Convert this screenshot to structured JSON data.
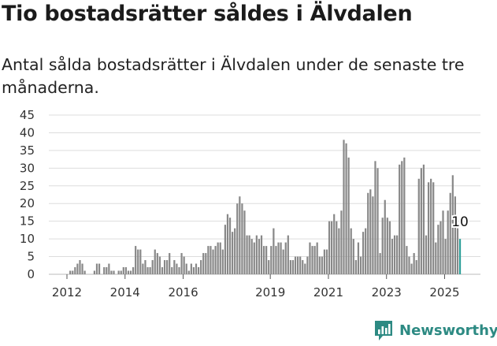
{
  "title": "Tio bostadsrätter såldes i Älvdalen",
  "subtitle": "Antal sålda bostadsrätter i Älvdalen under de senaste tre månaderna.",
  "brand": {
    "name": "Newsworthy",
    "icon": "chart-bars-icon",
    "color": "#2d8a83"
  },
  "colors": {
    "bar": "#888888",
    "highlight": "#2d9f99",
    "grid": "#dddddd"
  },
  "chart_data": {
    "type": "bar",
    "title": "Tio bostadsrätter såldes i Älvdalen",
    "xlabel": "",
    "ylabel": "",
    "ylim": [
      0,
      45
    ],
    "yticks": [
      0,
      5,
      10,
      15,
      20,
      25,
      30,
      35,
      40,
      45
    ],
    "xticks": [
      {
        "label": "2012",
        "year": 2012.0
      },
      {
        "label": "2014",
        "year": 2014.0
      },
      {
        "label": "2016",
        "year": 2016.0
      },
      {
        "label": "2019",
        "year": 2019.0
      },
      {
        "label": "2021",
        "year": 2021.0
      },
      {
        "label": "2023",
        "year": 2023.0
      },
      {
        "label": "2025",
        "year": 2025.0
      }
    ],
    "grid": true,
    "start": {
      "year": 2012,
      "month": 1
    },
    "interval": "month",
    "values": [
      0,
      1,
      1,
      2,
      3,
      4,
      3,
      1,
      0,
      0,
      0,
      1,
      3,
      3,
      0,
      2,
      2,
      3,
      1,
      1,
      0,
      1,
      1,
      2,
      2,
      1,
      1,
      2,
      8,
      7,
      7,
      3,
      4,
      2,
      2,
      4,
      7,
      6,
      5,
      2,
      4,
      4,
      6,
      2,
      4,
      3,
      2,
      6,
      5,
      3,
      1,
      3,
      2,
      3,
      2,
      4,
      6,
      6,
      8,
      8,
      7,
      8,
      9,
      9,
      7,
      14,
      17,
      16,
      12,
      13,
      20,
      22,
      20,
      18,
      11,
      11,
      10,
      9,
      11,
      10,
      11,
      8,
      8,
      4,
      8,
      13,
      8,
      9,
      9,
      7,
      9,
      11,
      4,
      4,
      5,
      5,
      5,
      4,
      3,
      5,
      9,
      8,
      8,
      9,
      5,
      5,
      7,
      7,
      15,
      15,
      17,
      15,
      13,
      18,
      38,
      37,
      33,
      13,
      10,
      4,
      9,
      5,
      12,
      13,
      23,
      24,
      22,
      32,
      30,
      6,
      16,
      21,
      16,
      15,
      10,
      11,
      11,
      31,
      32,
      33,
      8,
      5,
      3,
      6,
      4,
      27,
      30,
      31,
      11,
      26,
      27,
      26,
      9,
      14,
      15,
      18,
      10,
      18,
      23,
      28,
      22,
      13,
      10
    ],
    "highlight_last": 1,
    "annotation": {
      "label": "10",
      "value": 10
    }
  }
}
